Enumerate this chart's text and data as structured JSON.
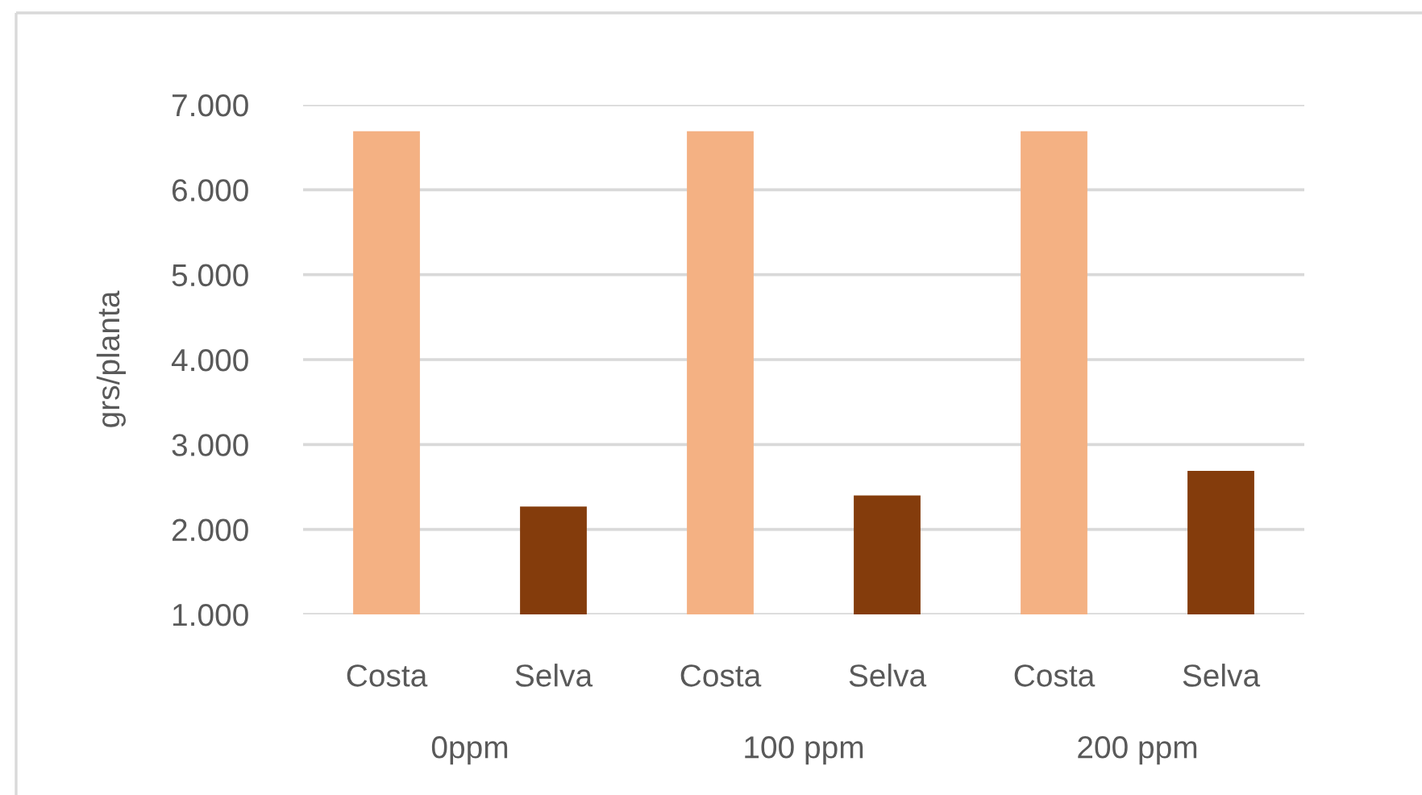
{
  "chart_data": {
    "type": "bar",
    "ylabel": "grs/planta",
    "categories": [
      "0ppm",
      "100 ppm",
      "200 ppm"
    ],
    "series": [
      {
        "name": "Costa",
        "color": "#f4b183",
        "values": [
          6690,
          6690,
          6690
        ]
      },
      {
        "name": "Selva",
        "color": "#843c0c",
        "values": [
          2270,
          2400,
          2690
        ]
      }
    ],
    "ylim": [
      1000,
      7000
    ],
    "yticks": [
      {
        "value": 1000,
        "label": "1.000"
      },
      {
        "value": 2000,
        "label": "2.000"
      },
      {
        "value": 3000,
        "label": "3.000"
      },
      {
        "value": 4000,
        "label": "4.000"
      },
      {
        "value": 5000,
        "label": "5.000"
      },
      {
        "value": 6000,
        "label": "6.000"
      },
      {
        "value": 7000,
        "label": "7.000"
      }
    ],
    "grid": "y",
    "legend": false
  }
}
